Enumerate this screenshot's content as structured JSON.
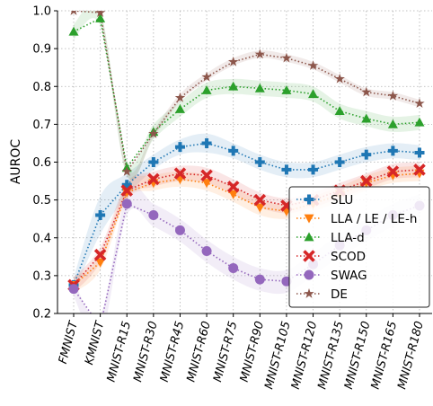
{
  "chart_data": {
    "type": "line",
    "ylabel": "AUROC",
    "xlabel": "",
    "ylim": [
      0.2,
      1.0
    ],
    "yticks": [
      "0.2",
      "0.3",
      "0.4",
      "0.5",
      "0.6",
      "0.7",
      "0.8",
      "0.9",
      "1.0"
    ],
    "grid": true,
    "legend_position": "lower-right",
    "categories": [
      "FMNIST",
      "KMNIST",
      "MNIST-R15",
      "MNIST-R30",
      "MNIST-R45",
      "MNIST-R60",
      "MNIST-R75",
      "MNIST-R90",
      "MNIST-R105",
      "MNIST-R120",
      "MNIST-R135",
      "MNIST-R150",
      "MNIST-R165",
      "MNIST-R180"
    ],
    "series": [
      {
        "name": "SLU",
        "color": "#1f77b4",
        "marker": "plus",
        "values": [
          0.275,
          0.46,
          0.54,
          0.6,
          0.64,
          0.65,
          0.63,
          0.6,
          0.58,
          0.58,
          0.6,
          0.62,
          0.63,
          0.625
        ],
        "band": [
          0.02,
          0.05,
          0.03,
          0.02,
          0.02,
          0.025,
          0.02,
          0.02,
          0.02,
          0.02,
          0.02,
          0.02,
          0.02,
          0.02
        ]
      },
      {
        "name": "LLA / LE / LE-h",
        "color": "#ff7f0e",
        "marker": "triangle-down",
        "values": [
          0.275,
          0.335,
          0.52,
          0.545,
          0.555,
          0.545,
          0.515,
          0.48,
          0.47,
          0.49,
          0.515,
          0.545,
          0.565,
          0.57
        ],
        "band": [
          0.02,
          0.02,
          0.02,
          0.02,
          0.02,
          0.02,
          0.02,
          0.02,
          0.02,
          0.02,
          0.02,
          0.02,
          0.02,
          0.02
        ]
      },
      {
        "name": "LLA-d",
        "color": "#2ca02c",
        "marker": "triangle-up",
        "values": [
          0.945,
          0.98,
          0.585,
          0.68,
          0.74,
          0.79,
          0.8,
          0.795,
          0.79,
          0.78,
          0.735,
          0.715,
          0.7,
          0.705
        ],
        "band": [
          0.02,
          0.02,
          0.02,
          0.02,
          0.02,
          0.02,
          0.02,
          0.02,
          0.02,
          0.02,
          0.02,
          0.02,
          0.02,
          0.02
        ]
      },
      {
        "name": "SCOD",
        "color": "#d62728",
        "marker": "x",
        "values": [
          0.275,
          0.355,
          0.525,
          0.555,
          0.57,
          0.565,
          0.535,
          0.5,
          0.485,
          0.5,
          0.525,
          0.55,
          0.575,
          0.58
        ],
        "band": [
          0.02,
          0.02,
          0.02,
          0.02,
          0.02,
          0.02,
          0.02,
          0.02,
          0.02,
          0.02,
          0.02,
          0.02,
          0.02,
          0.02
        ]
      },
      {
        "name": "SWAG",
        "color": "#9467bd",
        "marker": "circle",
        "values": [
          0.265,
          0.165,
          0.49,
          0.46,
          0.42,
          0.365,
          0.32,
          0.29,
          0.285,
          0.33,
          0.38,
          0.42,
          0.46,
          0.485
        ],
        "band": [
          0.02,
          0.03,
          0.03,
          0.03,
          0.03,
          0.03,
          0.03,
          0.03,
          0.03,
          0.03,
          0.03,
          0.03,
          0.03,
          0.03
        ]
      },
      {
        "name": "DE",
        "color": "#8c564b",
        "marker": "star",
        "values": [
          1.0,
          0.995,
          0.575,
          0.675,
          0.77,
          0.825,
          0.865,
          0.885,
          0.875,
          0.855,
          0.82,
          0.785,
          0.775,
          0.755
        ],
        "band": [
          0.005,
          0.005,
          0.01,
          0.01,
          0.01,
          0.01,
          0.01,
          0.01,
          0.01,
          0.01,
          0.01,
          0.01,
          0.01,
          0.01
        ]
      }
    ]
  }
}
